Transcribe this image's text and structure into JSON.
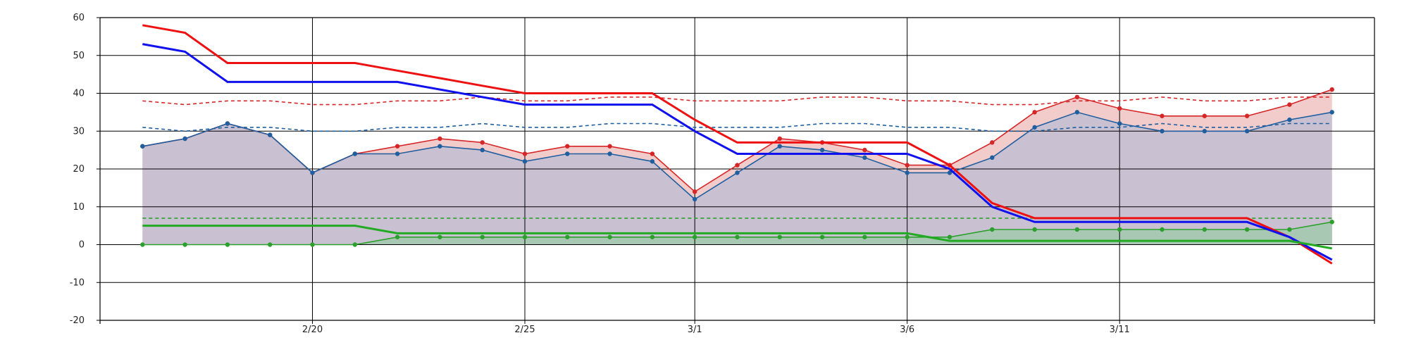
{
  "chart_data": {
    "type": "line",
    "xlabel": "",
    "ylabel": "",
    "ylim": [
      -20,
      60
    ],
    "y_ticks": [
      -20,
      -10,
      0,
      10,
      20,
      30,
      40,
      50,
      60
    ],
    "x_range": [
      "2/15",
      "3/17"
    ],
    "x_ticks": [
      {
        "date": "2/20",
        "label": "2/20"
      },
      {
        "date": "2/25",
        "label": "2/25"
      },
      {
        "date": "3/1",
        "label": "3/1"
      },
      {
        "date": "3/6",
        "label": "3/6"
      },
      {
        "date": "3/11",
        "label": "3/11"
      }
    ],
    "grid": true,
    "x": [
      "2/16",
      "2/17",
      "2/18",
      "2/19",
      "2/20",
      "2/21",
      "2/22",
      "2/23",
      "2/24",
      "2/25",
      "2/26",
      "2/27",
      "2/28",
      "3/1",
      "3/2",
      "3/3",
      "3/4",
      "3/5",
      "3/6",
      "3/7",
      "3/8",
      "3/9",
      "3/10",
      "3/11",
      "3/12",
      "3/13",
      "3/14",
      "3/15",
      "3/16"
    ],
    "series": [
      {
        "style": "solid-markers",
        "color": "#d62728",
        "fill": "#f2cbcb",
        "values": [
          26,
          28,
          32,
          29,
          19,
          24,
          26,
          28,
          27,
          24,
          26,
          26,
          24,
          14,
          21,
          28,
          27,
          25,
          21,
          21,
          27,
          35,
          39,
          36,
          34,
          34,
          34,
          37,
          41
        ]
      },
      {
        "style": "solid-markers",
        "color": "#1f5fa0",
        "fill": "#c9c0d2",
        "values": [
          26,
          28,
          32,
          29,
          19,
          24,
          24,
          26,
          25,
          22,
          24,
          24,
          22,
          12,
          19,
          26,
          25,
          23,
          19,
          19,
          23,
          31,
          35,
          32,
          30,
          30,
          30,
          33,
          35
        ]
      },
      {
        "style": "solid-markers",
        "color": "#2ca02c",
        "fill": "#a9c8b3",
        "values": [
          0,
          0,
          0,
          0,
          0,
          0,
          2,
          2,
          2,
          2,
          2,
          2,
          2,
          2,
          2,
          2,
          2,
          2,
          2,
          2,
          4,
          4,
          4,
          4,
          4,
          4,
          4,
          4,
          6
        ]
      },
      {
        "style": "dashed",
        "color": "#d62728",
        "values": [
          38,
          37,
          38,
          38,
          37,
          37,
          38,
          38,
          39,
          38,
          38,
          39,
          39,
          38,
          38,
          38,
          39,
          39,
          38,
          38,
          37,
          37,
          38,
          38,
          39,
          38,
          38,
          39,
          39
        ]
      },
      {
        "style": "dashed",
        "color": "#1f5fa0",
        "values": [
          31,
          30,
          31,
          31,
          30,
          30,
          31,
          31,
          32,
          31,
          31,
          32,
          32,
          31,
          31,
          31,
          32,
          32,
          31,
          31,
          30,
          30,
          31,
          31,
          32,
          31,
          31,
          32,
          32
        ]
      },
      {
        "style": "dashed",
        "color": "#2ca02c",
        "values": [
          7,
          7,
          7,
          7,
          7,
          7,
          7,
          7,
          7,
          7,
          7,
          7,
          7,
          7,
          7,
          7,
          7,
          7,
          7,
          7,
          7,
          7,
          7,
          7,
          7,
          7,
          7,
          7,
          7
        ]
      },
      {
        "style": "thick",
        "color": "#ee1111",
        "values": [
          58,
          56,
          48,
          48,
          48,
          48,
          46,
          44,
          42,
          40,
          40,
          40,
          40,
          33,
          27,
          27,
          27,
          27,
          27,
          21,
          11,
          7,
          7,
          7,
          7,
          7,
          7,
          2,
          -5
        ]
      },
      {
        "style": "thick",
        "color": "#1111ee",
        "values": [
          53,
          51,
          43,
          43,
          43,
          43,
          43,
          41,
          39,
          37,
          37,
          37,
          37,
          30,
          24,
          24,
          24,
          24,
          24,
          20,
          10,
          6,
          6,
          6,
          6,
          6,
          6,
          2,
          -4
        ]
      },
      {
        "style": "thick",
        "color": "#22aa22",
        "values": [
          5,
          5,
          5,
          5,
          5,
          5,
          3,
          3,
          3,
          3,
          3,
          3,
          3,
          3,
          3,
          3,
          3,
          3,
          3,
          1,
          1,
          1,
          1,
          1,
          1,
          1,
          1,
          1,
          -1
        ]
      }
    ]
  }
}
